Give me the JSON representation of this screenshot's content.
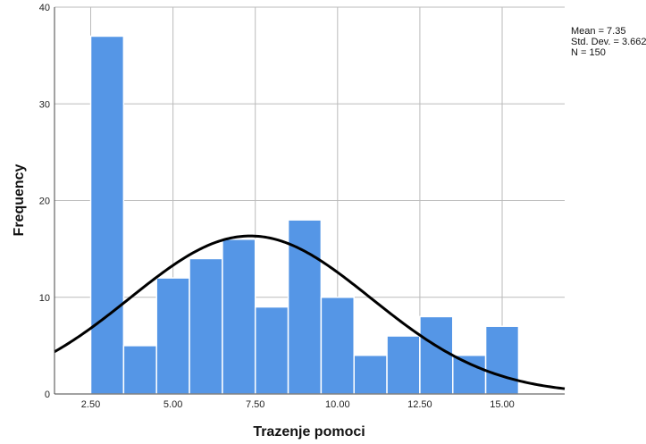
{
  "chart_data": {
    "type": "bar",
    "subtype": "histogram",
    "title": "",
    "xlabel": "Trazenje pomoci",
    "ylabel": "Frequency",
    "bin_width": 1,
    "bins": [
      {
        "start": 2.5,
        "end": 3.5,
        "count": 37
      },
      {
        "start": 3.5,
        "end": 4.5,
        "count": 5
      },
      {
        "start": 4.5,
        "end": 5.5,
        "count": 12
      },
      {
        "start": 5.5,
        "end": 6.5,
        "count": 14
      },
      {
        "start": 6.5,
        "end": 7.5,
        "count": 16
      },
      {
        "start": 7.5,
        "end": 8.5,
        "count": 9
      },
      {
        "start": 8.5,
        "end": 9.5,
        "count": 18
      },
      {
        "start": 9.5,
        "end": 10.5,
        "count": 10
      },
      {
        "start": 10.5,
        "end": 11.5,
        "count": 4
      },
      {
        "start": 11.5,
        "end": 12.5,
        "count": 6
      },
      {
        "start": 12.5,
        "end": 13.5,
        "count": 8
      },
      {
        "start": 13.5,
        "end": 14.5,
        "count": 4
      },
      {
        "start": 14.5,
        "end": 15.5,
        "count": 7
      }
    ],
    "xlim": [
      1.4,
      16.9
    ],
    "ylim": [
      0,
      40
    ],
    "x_ticks": [
      2.5,
      5.0,
      7.5,
      10.0,
      12.5,
      15.0
    ],
    "x_tick_labels": [
      "2.50",
      "5.00",
      "7.50",
      "10.00",
      "12.50",
      "15.00"
    ],
    "y_ticks": [
      0,
      10,
      20,
      30,
      40
    ],
    "y_tick_labels": [
      "0",
      "10",
      "20",
      "30",
      "40"
    ],
    "normal_curve": {
      "mean": 7.35,
      "sd": 3.662,
      "n": 150
    },
    "grid": true,
    "colors": {
      "bar": "#5596e6",
      "curve": "#000000",
      "grid": "#bbbbbb"
    },
    "stats": {
      "mean_label": "Mean = 7.35",
      "sd_label": "Std. Dev. = 3.662",
      "n_label": "N = 150"
    }
  }
}
